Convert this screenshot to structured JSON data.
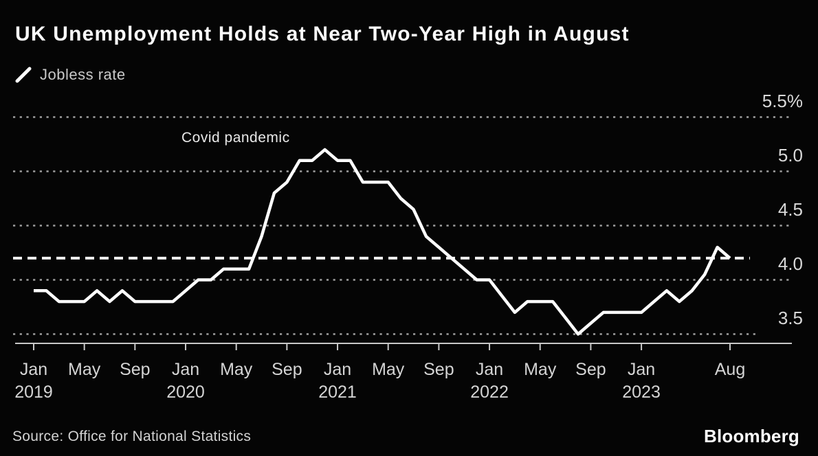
{
  "header": {
    "title": "UK Unemployment Holds at Near Two-Year High in August",
    "legend_label": "Jobless rate"
  },
  "annotation": {
    "text": "Covid pandemic"
  },
  "footer": {
    "source": "Source: Office for National Statistics",
    "logo": "Bloomberg"
  },
  "colors": {
    "background": "#050505",
    "line": "#ffffff",
    "reference": "#f2f2f2",
    "grid": "#a0a0a0",
    "axis": "#c8c8c8",
    "title_text": "#fbfbfb",
    "label_text": "#d4d4d4"
  },
  "chart_data": {
    "type": "line",
    "title": "UK Unemployment Holds at Near Two-Year High in August",
    "xlabel": "",
    "ylabel": "",
    "ylim": [
      3.4,
      5.65
    ],
    "grid": "horizontal-dotted",
    "legend_position": "top-left",
    "reference_line": {
      "value": 4.2,
      "style": "dashed"
    },
    "annotations": [
      {
        "text": "Covid pandemic",
        "x": "2020-06",
        "y": 5.35
      }
    ],
    "y_ticks": [
      {
        "label": "5.5%",
        "value": 5.5
      },
      {
        "label": "5.0",
        "value": 5.0
      },
      {
        "label": "4.5",
        "value": 4.5
      },
      {
        "label": "4.0",
        "value": 4.0
      },
      {
        "label": "3.5",
        "value": 3.5
      }
    ],
    "x_ticks": [
      {
        "label": "Jan",
        "year": "2019",
        "month_index": 0
      },
      {
        "label": "May",
        "month_index": 4
      },
      {
        "label": "Sep",
        "month_index": 8
      },
      {
        "label": "Jan",
        "year": "2020",
        "month_index": 12
      },
      {
        "label": "May",
        "month_index": 16
      },
      {
        "label": "Sep",
        "month_index": 20
      },
      {
        "label": "Jan",
        "year": "2021",
        "month_index": 24
      },
      {
        "label": "May",
        "month_index": 28
      },
      {
        "label": "Sep",
        "month_index": 32
      },
      {
        "label": "Jan",
        "year": "2022",
        "month_index": 36
      },
      {
        "label": "May",
        "month_index": 40
      },
      {
        "label": "Sep",
        "month_index": 44
      },
      {
        "label": "Jan",
        "year": "2023",
        "month_index": 48
      },
      {
        "label": "Aug",
        "month_index": 55
      }
    ],
    "series": [
      {
        "name": "Jobless rate",
        "unit": "%",
        "frequency": "monthly",
        "x_start": "2019-01",
        "x_end": "2023-08",
        "x": [
          "2019-01",
          "2019-02",
          "2019-03",
          "2019-04",
          "2019-05",
          "2019-06",
          "2019-07",
          "2019-08",
          "2019-09",
          "2019-10",
          "2019-11",
          "2019-12",
          "2020-01",
          "2020-02",
          "2020-03",
          "2020-04",
          "2020-05",
          "2020-06",
          "2020-07",
          "2020-08",
          "2020-09",
          "2020-10",
          "2020-11",
          "2020-12",
          "2021-01",
          "2021-02",
          "2021-03",
          "2021-04",
          "2021-05",
          "2021-06",
          "2021-07",
          "2021-08",
          "2021-09",
          "2021-10",
          "2021-11",
          "2021-12",
          "2022-01",
          "2022-02",
          "2022-03",
          "2022-04",
          "2022-05",
          "2022-06",
          "2022-07",
          "2022-08",
          "2022-09",
          "2022-10",
          "2022-11",
          "2022-12",
          "2023-01",
          "2023-02",
          "2023-03",
          "2023-04",
          "2023-05",
          "2023-06",
          "2023-07",
          "2023-08"
        ],
        "values": [
          3.9,
          3.9,
          3.8,
          3.8,
          3.8,
          3.9,
          3.8,
          3.9,
          3.8,
          3.8,
          3.8,
          3.8,
          3.9,
          4.0,
          4.0,
          4.1,
          4.1,
          4.1,
          4.4,
          4.8,
          4.9,
          5.1,
          5.1,
          5.2,
          5.1,
          5.1,
          4.9,
          4.9,
          4.9,
          4.75,
          4.65,
          4.4,
          4.3,
          4.2,
          4.1,
          4.0,
          4.0,
          3.85,
          3.7,
          3.8,
          3.8,
          3.8,
          3.65,
          3.5,
          3.6,
          3.7,
          3.7,
          3.7,
          3.7,
          3.8,
          3.9,
          3.8,
          3.9,
          4.05,
          4.3,
          4.2
        ]
      }
    ]
  }
}
